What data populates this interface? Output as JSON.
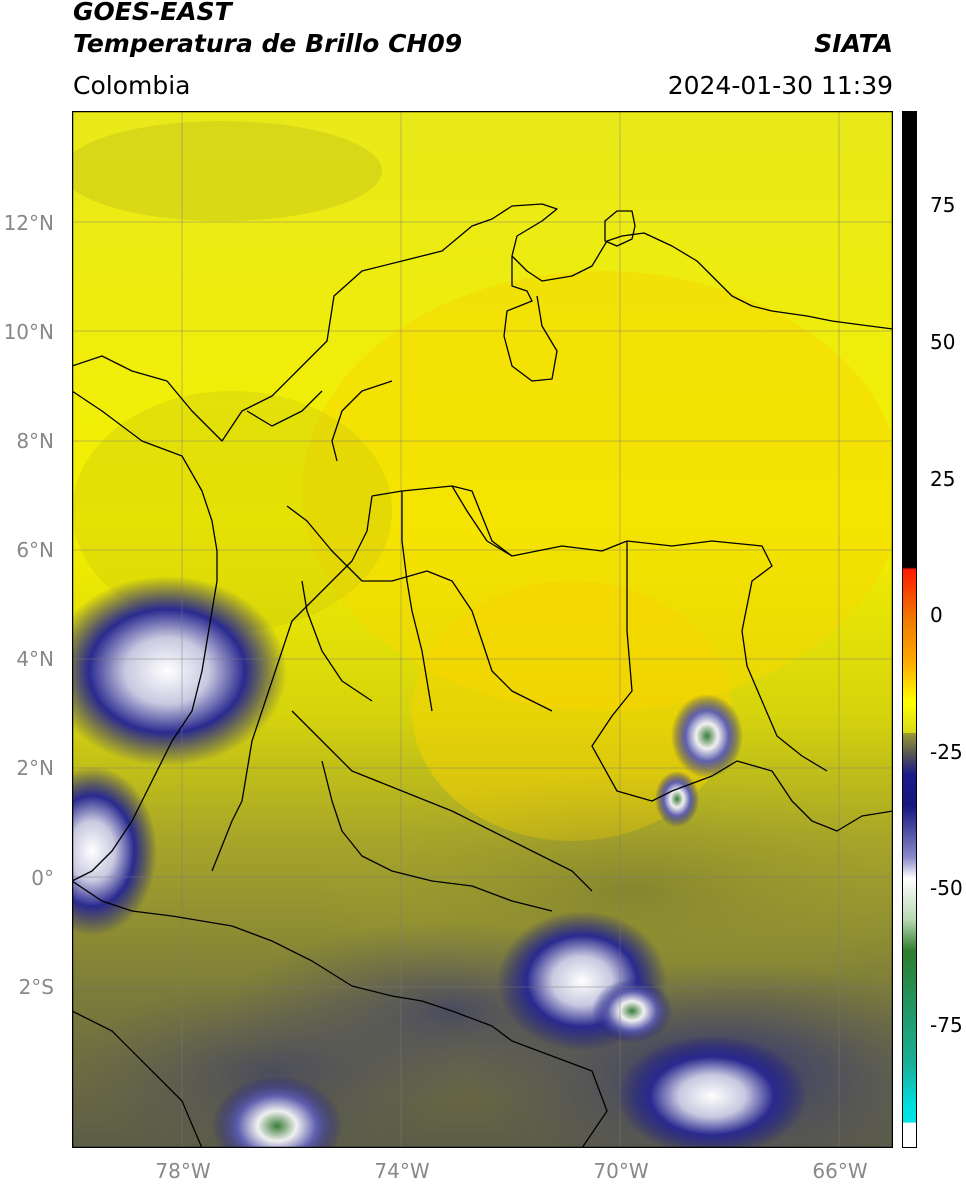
{
  "header": {
    "satellite": "GOES-EAST",
    "product": "Temperatura de Brillo CH09",
    "brand": "SIATA",
    "region": "Colombia",
    "timestamp": "2024-01-30 11:39"
  },
  "map": {
    "lat_labels": [
      "12°N",
      "10°N",
      "8°N",
      "6°N",
      "4°N",
      "2°N",
      "0°",
      "2°S"
    ],
    "lon_labels": [
      "78°W",
      "74°W",
      "70°W",
      "66°W"
    ],
    "lon_range": [
      -80,
      -65
    ],
    "lat_range": [
      -5,
      14
    ],
    "grid": true
  },
  "colorbar": {
    "ticks": [
      "75",
      "50",
      "25",
      "0",
      "-25",
      "-50",
      "-75"
    ],
    "range": [
      -100,
      90
    ],
    "colors": {
      "warm_plateau": "#000000",
      "red": "#e82010",
      "orange": "#f07a00",
      "yellow": "#ffff00",
      "olive": "#8f8f2a",
      "navy": "#16167f",
      "white": "#ffffff",
      "green": "#2e7d2e",
      "teal": "#1aa58c",
      "cyan": "#00e5e5"
    }
  }
}
